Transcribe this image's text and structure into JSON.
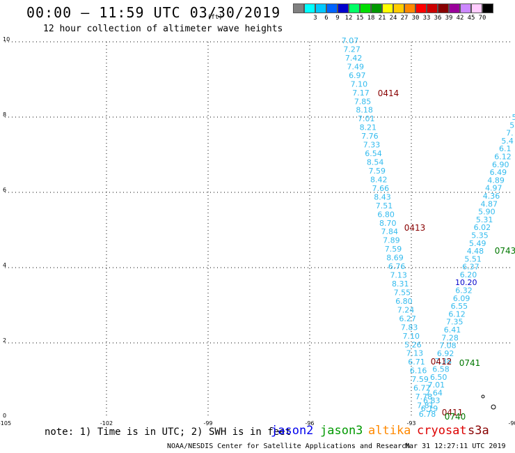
{
  "header": {
    "title": "00:00 – 11:59 UTC 03/30/2019",
    "subtitle": "12 hour collection of altimeter wave heights"
  },
  "legend": {
    "unit": "(ft)",
    "items": [
      {
        "label": "",
        "color": "#808080"
      },
      {
        "label": "3",
        "color": "#00ffff"
      },
      {
        "label": "6",
        "color": "#00c8ff"
      },
      {
        "label": "9",
        "color": "#0064ff"
      },
      {
        "label": "12",
        "color": "#0000cd"
      },
      {
        "label": "15",
        "color": "#00ff66"
      },
      {
        "label": "18",
        "color": "#00dd00"
      },
      {
        "label": "21",
        "color": "#009900"
      },
      {
        "label": "24",
        "color": "#ffff00"
      },
      {
        "label": "27",
        "color": "#ffcc00"
      },
      {
        "label": "30",
        "color": "#ff8800"
      },
      {
        "label": "33",
        "color": "#ff0000"
      },
      {
        "label": "36",
        "color": "#cc0000"
      },
      {
        "label": "39",
        "color": "#880000"
      },
      {
        "label": "42",
        "color": "#990099"
      },
      {
        "label": "45",
        "color": "#cc88ff"
      },
      {
        "label": "70",
        "color": "#ffccff"
      },
      {
        "label": "",
        "color": "#000000"
      }
    ]
  },
  "map": {
    "lon_range": [
      -105,
      -90
    ],
    "lat_range": [
      0,
      10
    ],
    "x_ticks": [
      "-105",
      "-102",
      "-99",
      "-96",
      "-93",
      "-90"
    ],
    "y_ticks": [
      "0",
      "2",
      "4",
      "6",
      "8",
      "10"
    ],
    "track1_color": "#33bbee",
    "track1": [
      "7.07",
      "7.27",
      "7.42",
      "7.49",
      "6.97",
      "7.10",
      "7.17",
      "7.85",
      "8.18",
      "7.01",
      "8.21",
      "7.76",
      "7.33",
      "6.54",
      "8.54",
      "7.59",
      "8.42",
      "7.66",
      "8.43",
      "7.51",
      "6.80",
      "8.70",
      "7.84",
      "7.89",
      "7.59",
      "8.69",
      "6.76",
      "7.13",
      "8.31",
      "7.55",
      "6.80",
      "7.24",
      "6.27",
      "7.83",
      "7.10",
      "5.26",
      "7.13",
      "6.71",
      "6.16",
      "7.59",
      "6.77",
      "7.78",
      "7.81",
      "6.78"
    ],
    "track2": [
      {
        "v": "6.19",
        "c": "#33bbee"
      },
      {
        "v": "6.83",
        "c": "#33bbee"
      },
      {
        "v": "7.64",
        "c": "#33bbee"
      },
      {
        "v": "7.01",
        "c": "#33bbee"
      },
      {
        "v": "6.50",
        "c": "#33bbee"
      },
      {
        "v": "6.58",
        "c": "#33bbee"
      },
      {
        "v": "7.38",
        "c": "#33bbee"
      },
      {
        "v": "6.92",
        "c": "#33bbee"
      },
      {
        "v": "7.08",
        "c": "#33bbee"
      },
      {
        "v": "7.28",
        "c": "#33bbee"
      },
      {
        "v": "6.41",
        "c": "#33bbee"
      },
      {
        "v": "7.35",
        "c": "#33bbee"
      },
      {
        "v": "6.12",
        "c": "#33bbee"
      },
      {
        "v": "6.55",
        "c": "#33bbee"
      },
      {
        "v": "6.09",
        "c": "#33bbee"
      },
      {
        "v": "6.32",
        "c": "#33bbee"
      },
      {
        "v": "10.20",
        "c": "#0000cc"
      },
      {
        "v": "6.20",
        "c": "#33bbee"
      },
      {
        "v": "6.37",
        "c": "#33bbee"
      },
      {
        "v": "5.51",
        "c": "#33bbee"
      },
      {
        "v": "4.48",
        "c": "#33bbee"
      },
      {
        "v": "5.49",
        "c": "#33bbee"
      },
      {
        "v": "5.35",
        "c": "#33bbee"
      },
      {
        "v": "6.02",
        "c": "#33bbee"
      },
      {
        "v": "5.31",
        "c": "#33bbee"
      },
      {
        "v": "5.90",
        "c": "#33bbee"
      },
      {
        "v": "4.87",
        "c": "#33bbee"
      },
      {
        "v": "4.36",
        "c": "#33bbee"
      },
      {
        "v": "4.97",
        "c": "#33bbee"
      },
      {
        "v": "4.89",
        "c": "#33bbee"
      },
      {
        "v": "6.49",
        "c": "#33bbee"
      },
      {
        "v": "6.90",
        "c": "#33bbee"
      },
      {
        "v": "6.12",
        "c": "#33bbee"
      },
      {
        "v": "6.1",
        "c": "#33bbee"
      },
      {
        "v": "5.4",
        "c": "#33bbee"
      },
      {
        "v": "7.",
        "c": "#33bbee"
      },
      {
        "v": "5",
        "c": "#33bbee"
      },
      {
        "v": "5",
        "c": "#33bbee"
      }
    ],
    "time_labels": [
      {
        "text": "0414",
        "color": "#880000"
      },
      {
        "text": "0413",
        "color": "#880000"
      },
      {
        "text": "0412",
        "color": "#880000"
      },
      {
        "text": "0411",
        "color": "#880000"
      },
      {
        "text": "0743",
        "color": "#007700"
      },
      {
        "text": "0741",
        "color": "#007700"
      },
      {
        "text": "0740",
        "color": "#007700"
      }
    ],
    "islands": [
      "island-a",
      "island-b"
    ]
  },
  "footer": {
    "note": "note: 1) Time is in UTC; 2) SWH is in feet",
    "satellites": [
      {
        "name": "jason2",
        "color": "#0000ee"
      },
      {
        "name": "jason3",
        "color": "#009900"
      },
      {
        "name": "altika",
        "color": "#ff8800"
      },
      {
        "name": "cryosat",
        "color": "#dd0000"
      },
      {
        "name": "s3a",
        "color": "#880000"
      }
    ],
    "credit": "NOAA/NESDIS Center for Satellite Applications and Research",
    "generated": "Mar 31 12:27:11 UTC 2019"
  }
}
